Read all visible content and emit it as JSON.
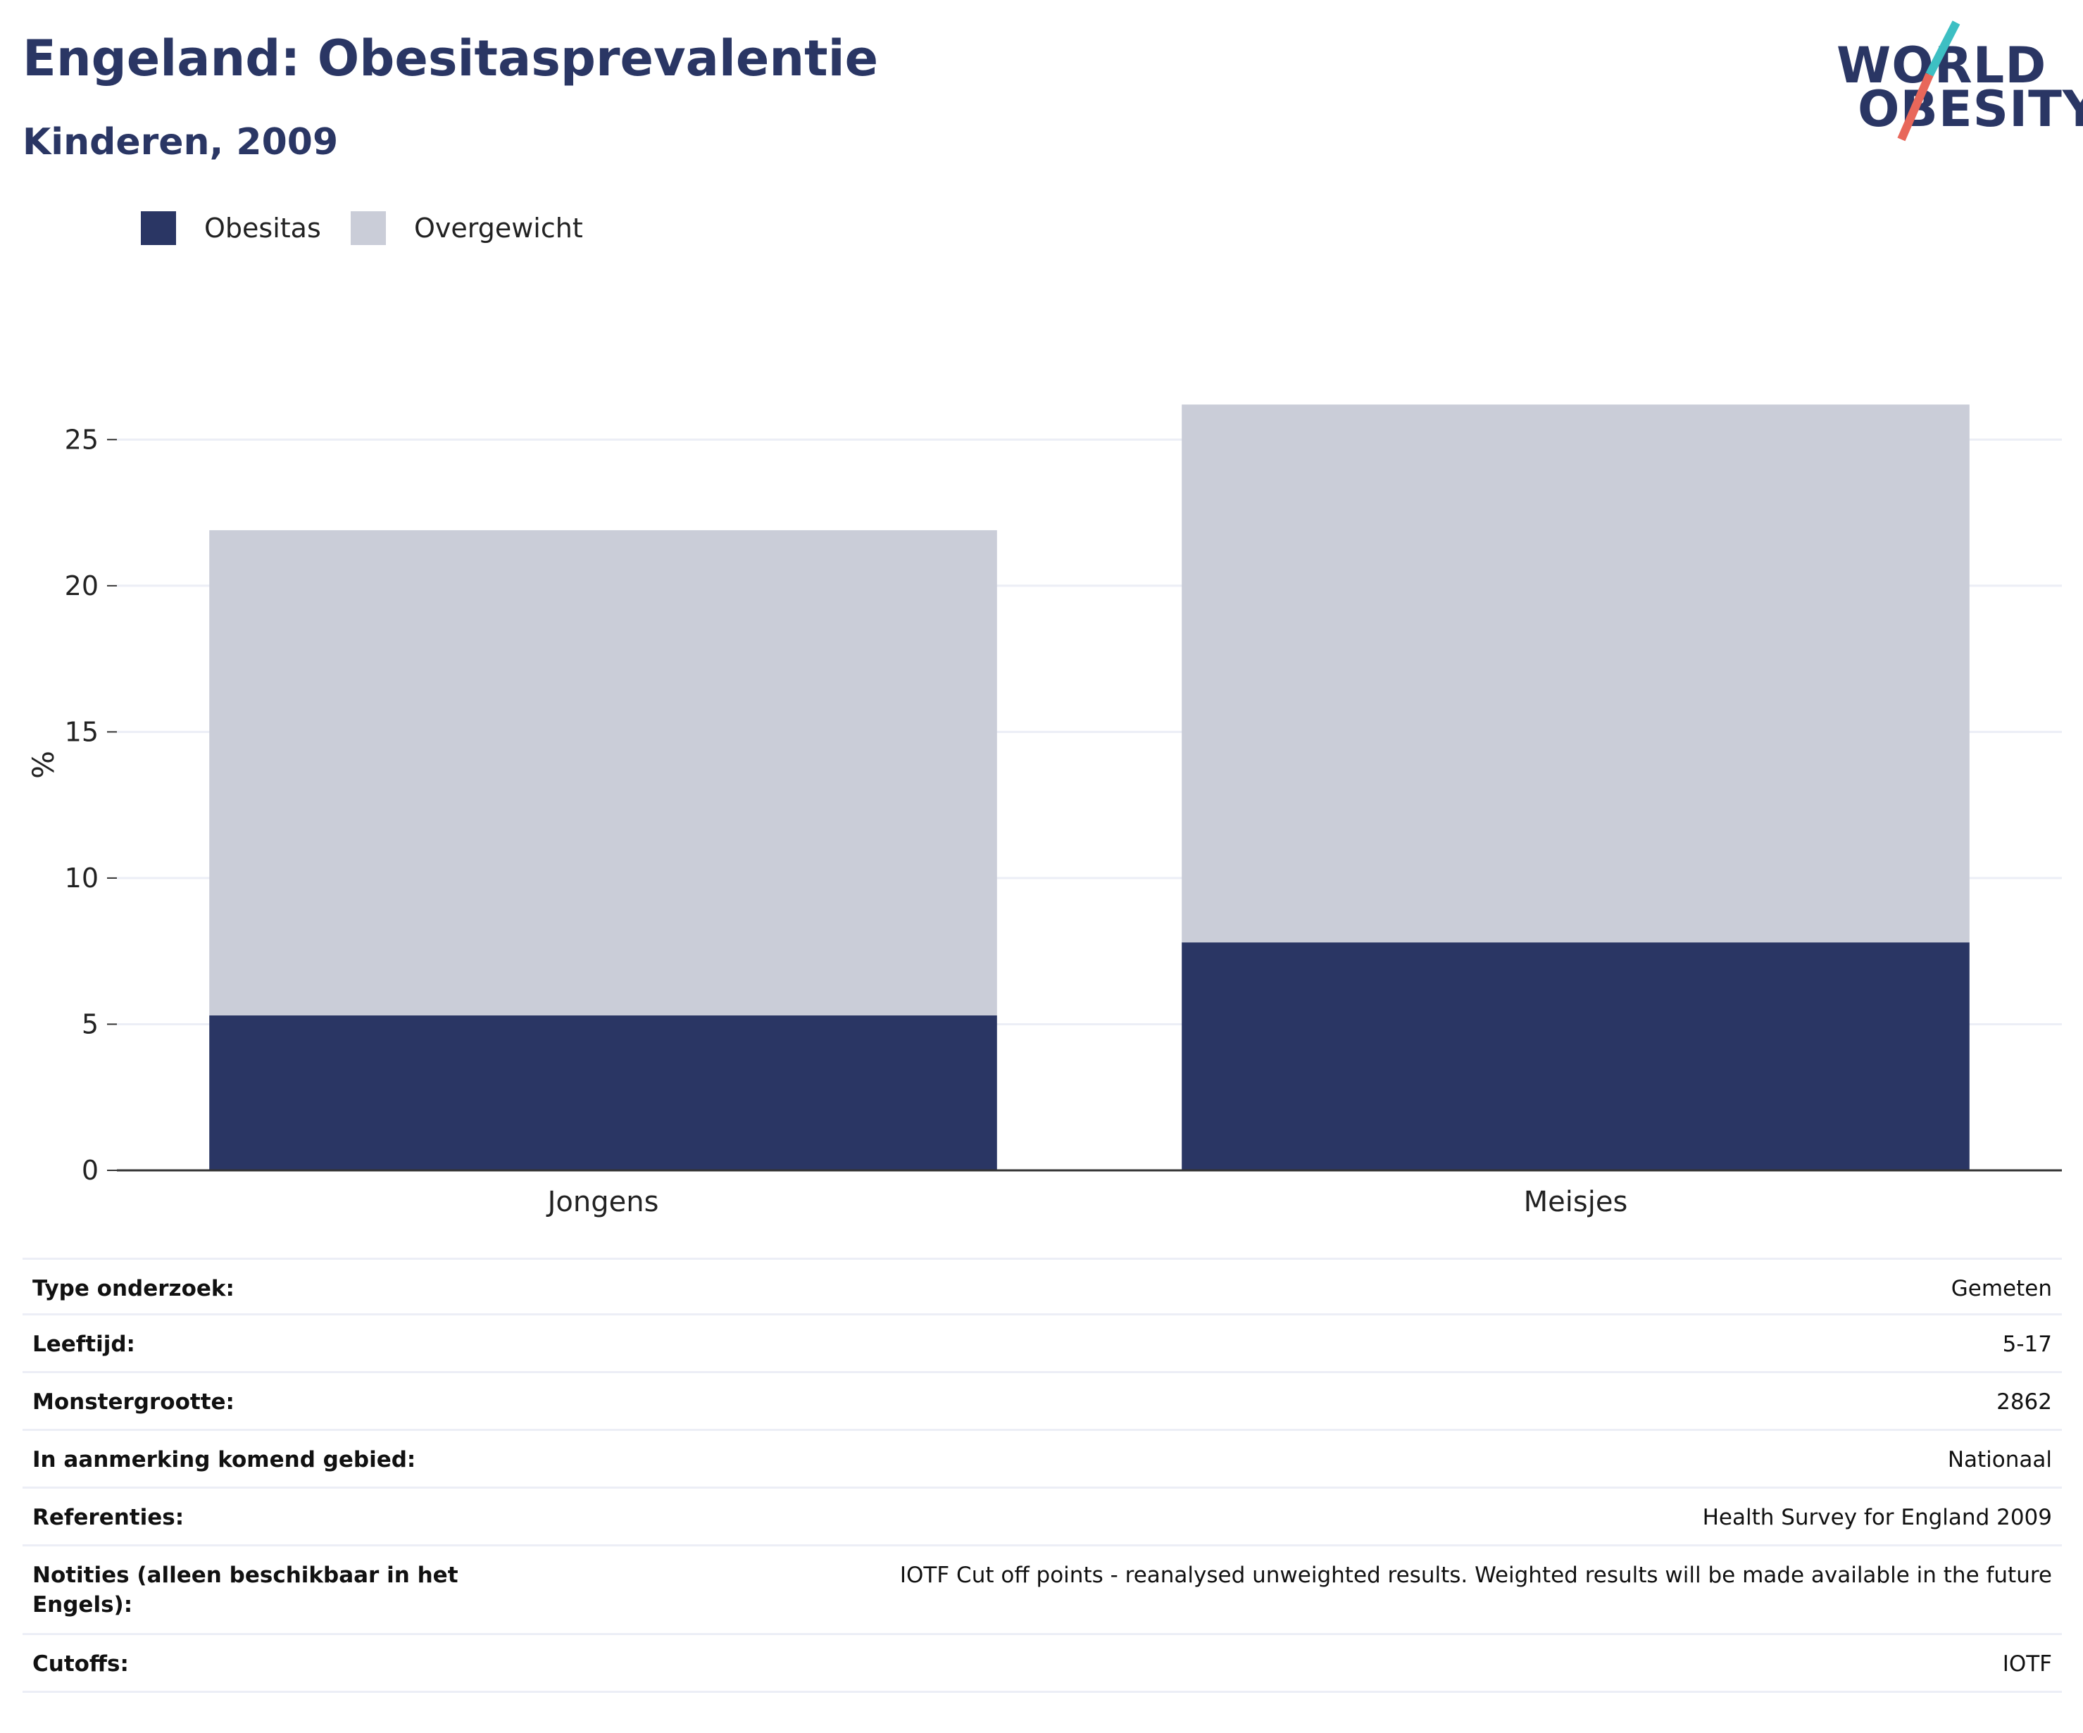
{
  "title": "Engeland: Obesitasprevalentie",
  "subtitle": "Kinderen, 2009",
  "logo": {
    "line1": "WORLD",
    "line2": "OBESITY"
  },
  "colors": {
    "obesity": "#2a3664",
    "overweight": "#cacdd8",
    "title": "#2a3664",
    "logo_teal": "#3dbfc3",
    "logo_coral": "#e8675a",
    "grid": "#eceef6",
    "axis": "#333333"
  },
  "chart_data": {
    "type": "bar",
    "stacked": true,
    "categories": [
      "Jongens",
      "Meisjes"
    ],
    "series": [
      {
        "name": "Obesitas",
        "values": [
          5.3,
          7.8
        ]
      },
      {
        "name": "Overgewicht",
        "values": [
          16.6,
          18.4
        ]
      }
    ],
    "ylabel": "%",
    "xlabel": "",
    "ylim": [
      0,
      26.5
    ],
    "yticks": [
      0,
      5,
      10,
      15,
      20,
      25
    ],
    "grid": true,
    "legend_position": "top-left"
  },
  "info_table": [
    {
      "label": "Type onderzoek:",
      "value": "Gemeten"
    },
    {
      "label": "Leeftijd:",
      "value": "5-17"
    },
    {
      "label": "Monstergrootte:",
      "value": "2862"
    },
    {
      "label": "In aanmerking komend gebied:",
      "value": "Nationaal"
    },
    {
      "label": "Referenties:",
      "value": "Health Survey for England 2009"
    },
    {
      "label": "Notities (alleen beschikbaar in het Engels):",
      "value": "IOTF Cut off points - reanalysed unweighted results. Weighted results will be made available in the future"
    },
    {
      "label": "Cutoffs:",
      "value": "IOTF"
    }
  ]
}
